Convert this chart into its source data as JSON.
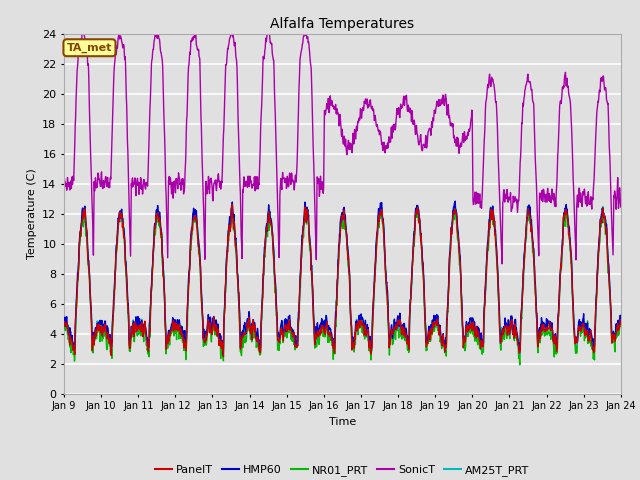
{
  "title": "Alfalfa Temperatures",
  "xlabel": "Time",
  "ylabel": "Temperature (C)",
  "ylim": [
    0,
    24
  ],
  "yticks": [
    0,
    2,
    4,
    6,
    8,
    10,
    12,
    14,
    16,
    18,
    20,
    22,
    24
  ],
  "x_labels": [
    "Jan 9",
    "Jan 10",
    "Jan 11",
    "Jan 12",
    "Jan 13",
    "Jan 14",
    "Jan 15",
    "Jan 16",
    "Jan 17",
    "Jan 18",
    "Jan 19",
    "Jan 20",
    "Jan 21",
    "Jan 22",
    "Jan 23",
    "Jan 24"
  ],
  "annotation_text": "TA_met",
  "annotation_box_color": "#FFFF99",
  "annotation_box_edge_color": "#884400",
  "annotation_text_color": "#884400",
  "bg_color": "#E0E0E0",
  "grid_color": "#FFFFFF",
  "series_PanelT_color": "#CC0000",
  "series_HMP60_color": "#0000CC",
  "series_NR01_PRT_color": "#00BB00",
  "series_SonicT_color": "#AA00AA",
  "series_AM25T_PRT_color": "#00BBBB",
  "legend_labels": [
    "PanelT",
    "HMP60",
    "NR01_PRT",
    "SonicT",
    "AM25T_PRT"
  ],
  "legend_colors": [
    "#CC0000",
    "#0000CC",
    "#00BB00",
    "#AA00AA",
    "#00BBBB"
  ],
  "n_days": 15,
  "pts_per_day": 96
}
